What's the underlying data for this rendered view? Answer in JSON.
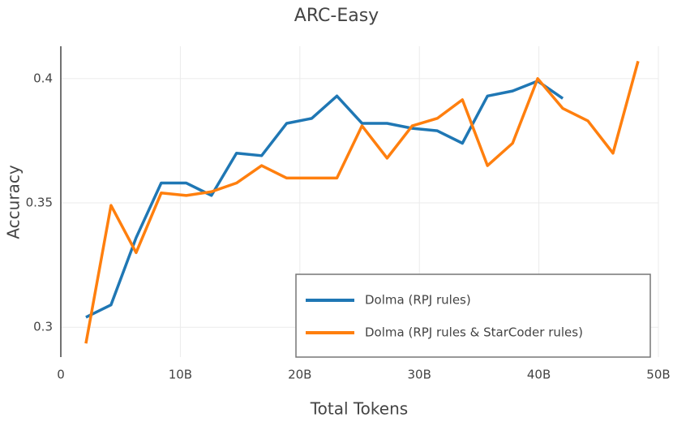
{
  "chart_data": {
    "type": "line",
    "title": "ARC-Easy",
    "x_label": "Total Tokens",
    "y_label": "Accuracy",
    "xlim": [
      0,
      50
    ],
    "ylim": [
      0.288,
      0.413
    ],
    "xticks": [
      0,
      {
        "value": 10,
        "label": "10B"
      },
      {
        "value": 20,
        "label": "20B"
      },
      {
        "value": 30,
        "label": "30B"
      },
      {
        "value": 40,
        "label": "40B"
      },
      {
        "value": 50,
        "label": "50B"
      }
    ],
    "yticks": [
      0.3,
      0.35,
      0.4
    ],
    "grid": true,
    "legend": "lower right",
    "series": [
      {
        "name": "Dolma (RPJ rules)",
        "color": "#1f77b4",
        "x": [
          2.1,
          4.2,
          6.3,
          8.4,
          10.5,
          12.6,
          14.7,
          16.8,
          18.9,
          21.0,
          23.1,
          25.2,
          27.3,
          29.4,
          31.5,
          33.6,
          35.7,
          37.8,
          39.9,
          42.0
        ],
        "values": [
          0.304,
          0.309,
          0.336,
          0.358,
          0.358,
          0.353,
          0.37,
          0.369,
          0.382,
          0.384,
          0.393,
          0.382,
          0.382,
          0.38,
          0.379,
          0.374,
          0.393,
          0.395,
          0.399,
          0.392
        ]
      },
      {
        "name": "Dolma (RPJ rules & StarCoder rules)",
        "color": "#ff7f0e",
        "x": [
          2.1,
          4.2,
          6.3,
          8.4,
          10.5,
          12.6,
          14.7,
          16.8,
          18.9,
          21.0,
          23.1,
          25.2,
          27.3,
          29.4,
          31.5,
          33.6,
          35.7,
          37.8,
          39.9,
          42.0,
          44.1,
          46.2,
          48.3
        ],
        "values": [
          0.2935,
          0.349,
          0.33,
          0.354,
          0.353,
          0.3545,
          0.358,
          0.365,
          0.36,
          0.36,
          0.36,
          0.381,
          0.368,
          0.381,
          0.384,
          0.3915,
          0.365,
          0.374,
          0.4,
          0.388,
          0.383,
          0.37,
          0.407
        ]
      }
    ]
  }
}
